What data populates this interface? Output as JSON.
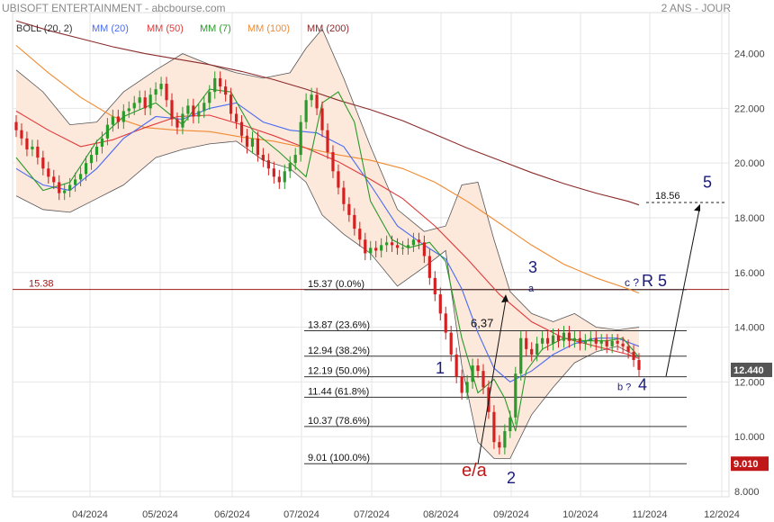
{
  "header": {
    "left": "UBISOFT ENTERTAINMENT - abcbourse.com",
    "right": "2 ANS - JOUR"
  },
  "legend": [
    {
      "label": "BOLL (20, 2)",
      "color": "#333333"
    },
    {
      "label": "MM (20)",
      "color": "#4a6cf0"
    },
    {
      "label": "MM (50)",
      "color": "#e03a3a"
    },
    {
      "label": "MM (7)",
      "color": "#2a9a2a"
    },
    {
      "label": "MM (100)",
      "color": "#f08a30"
    },
    {
      "label": "MM (200)",
      "color": "#8b2a2a"
    }
  ],
  "colors": {
    "up": "#2a9a2a",
    "down": "#d42020",
    "band_fill": "#fde8dc",
    "band_line": "#555555",
    "fib_line": "#333333",
    "hline": "#a01818",
    "wave_blue": "#1a1a7a",
    "wave_red": "#c01818",
    "grid": "#e6e6e6"
  },
  "chart_data": {
    "type": "candlestick",
    "title": "UBISOFT ENTERTAINMENT",
    "x_ticks": [
      "04/2024",
      "05/2024",
      "06/2024",
      "07/2024",
      "07/2024",
      "08/2024",
      "09/2024",
      "10/2024",
      "11/2024",
      "12/2024"
    ],
    "y_ticks": [
      "24.000",
      "22.000",
      "20.000",
      "18.000",
      "16.000",
      "14.000",
      "12.000",
      "10.000",
      "8.000"
    ],
    "ylim": [
      7.8,
      25.5
    ],
    "last_price": "12.440",
    "low_marker": "9.010",
    "horizontal_line": {
      "label": "15.38",
      "value": 15.38
    },
    "fibonacci": [
      {
        "label": "15.37  (0.0%)",
        "value": 15.37
      },
      {
        "label": "13.87  (23.6%)",
        "value": 13.87
      },
      {
        "label": "12.94  (38.2%)",
        "value": 12.94
      },
      {
        "label": "12.19  (50.0%)",
        "value": 12.19
      },
      {
        "label": "11.44  (61.8%)",
        "value": 11.44
      },
      {
        "label": "10.37  (78.6%)",
        "value": 10.37
      },
      {
        "label": "9.01  (100.0%)",
        "value": 9.01
      }
    ],
    "target": {
      "label": "18.56",
      "value": 18.56
    },
    "annotations": [
      {
        "text": "5",
        "kind": "wave_blue_big"
      },
      {
        "text": "c ?",
        "kind": "small_blue"
      },
      {
        "text": "R 5",
        "kind": "wave_blue_big"
      },
      {
        "text": "3",
        "kind": "wave_blue_big"
      },
      {
        "text": "a",
        "kind": "small_blue"
      },
      {
        "text": "6,37",
        "kind": "plain"
      },
      {
        "text": "1",
        "kind": "wave_blue_big"
      },
      {
        "text": "b ?",
        "kind": "small_blue"
      },
      {
        "text": "4",
        "kind": "wave_blue_big"
      },
      {
        "text": "e/a",
        "kind": "wave_red"
      },
      {
        "text": "2",
        "kind": "wave_blue_big"
      }
    ],
    "series": [
      {
        "name": "MM (200)",
        "points": [
          [
            0,
            25.2
          ],
          [
            12,
            24.85
          ],
          [
            24,
            24.55
          ],
          [
            36,
            24.25
          ],
          [
            48,
            24.0
          ],
          [
            60,
            23.8
          ],
          [
            72,
            23.6
          ],
          [
            84,
            23.35
          ],
          [
            96,
            23.05
          ],
          [
            108,
            22.7
          ],
          [
            120,
            22.3
          ],
          [
            132,
            21.95
          ],
          [
            144,
            21.55
          ],
          [
            156,
            21.05
          ],
          [
            168,
            20.55
          ],
          [
            180,
            20.1
          ],
          [
            192,
            19.65
          ],
          [
            204,
            19.25
          ],
          [
            216,
            18.9
          ],
          [
            228,
            18.6
          ],
          [
            232,
            18.47
          ]
        ]
      },
      {
        "name": "MM (100)",
        "points": [
          [
            0,
            24.3
          ],
          [
            12,
            23.3
          ],
          [
            24,
            22.4
          ],
          [
            36,
            21.7
          ],
          [
            48,
            21.3
          ],
          [
            60,
            21.2
          ],
          [
            72,
            21.15
          ],
          [
            84,
            20.95
          ],
          [
            96,
            20.8
          ],
          [
            108,
            20.55
          ],
          [
            120,
            20.3
          ],
          [
            132,
            20.1
          ],
          [
            144,
            19.8
          ],
          [
            156,
            19.3
          ],
          [
            168,
            18.6
          ],
          [
            180,
            17.8
          ],
          [
            192,
            17.0
          ],
          [
            204,
            16.3
          ],
          [
            216,
            15.8
          ],
          [
            228,
            15.4
          ],
          [
            232,
            15.25
          ]
        ]
      },
      {
        "name": "MM (50)",
        "points": [
          [
            0,
            21.9
          ],
          [
            12,
            21.2
          ],
          [
            24,
            20.6
          ],
          [
            36,
            20.85
          ],
          [
            48,
            21.3
          ],
          [
            60,
            21.7
          ],
          [
            72,
            21.75
          ],
          [
            84,
            21.4
          ],
          [
            96,
            21.0
          ],
          [
            108,
            20.55
          ],
          [
            120,
            20.05
          ],
          [
            132,
            19.4
          ],
          [
            144,
            18.7
          ],
          [
            156,
            17.7
          ],
          [
            168,
            16.5
          ],
          [
            180,
            15.2
          ],
          [
            192,
            14.2
          ],
          [
            204,
            13.6
          ],
          [
            216,
            13.3
          ],
          [
            228,
            13.0
          ],
          [
            232,
            12.85
          ]
        ]
      },
      {
        "name": "MM (20)",
        "points": [
          [
            0,
            19.8
          ],
          [
            10,
            19.2
          ],
          [
            20,
            19.0
          ],
          [
            30,
            19.8
          ],
          [
            40,
            20.9
          ],
          [
            52,
            21.7
          ],
          [
            62,
            21.6
          ],
          [
            72,
            22.0
          ],
          [
            82,
            22.2
          ],
          [
            92,
            21.5
          ],
          [
            102,
            21.2
          ],
          [
            112,
            21.1
          ],
          [
            122,
            20.6
          ],
          [
            132,
            19.2
          ],
          [
            142,
            17.7
          ],
          [
            152,
            17.0
          ],
          [
            160,
            16.5
          ],
          [
            166,
            15.4
          ],
          [
            172,
            13.8
          ],
          [
            178,
            12.5
          ],
          [
            184,
            12.0
          ],
          [
            192,
            12.4
          ],
          [
            200,
            13.0
          ],
          [
            208,
            13.4
          ],
          [
            216,
            13.6
          ],
          [
            224,
            13.6
          ],
          [
            232,
            13.3
          ]
        ]
      },
      {
        "name": "MM (7)",
        "points": [
          [
            0,
            20.2
          ],
          [
            10,
            19.0
          ],
          [
            20,
            19.3
          ],
          [
            30,
            20.8
          ],
          [
            40,
            21.7
          ],
          [
            52,
            22.2
          ],
          [
            62,
            21.4
          ],
          [
            72,
            22.7
          ],
          [
            80,
            22.6
          ],
          [
            88,
            21.2
          ],
          [
            98,
            20.4
          ],
          [
            108,
            19.5
          ],
          [
            114,
            22.2
          ],
          [
            120,
            22.6
          ],
          [
            126,
            21.5
          ],
          [
            132,
            18.6
          ],
          [
            140,
            17.2
          ],
          [
            146,
            16.9
          ],
          [
            154,
            17.1
          ],
          [
            160,
            16.4
          ],
          [
            166,
            13.6
          ],
          [
            172,
            11.6
          ],
          [
            178,
            12.1
          ],
          [
            182,
            11.4
          ],
          [
            186,
            10.2
          ],
          [
            190,
            12.4
          ],
          [
            196,
            13.2
          ],
          [
            204,
            13.6
          ],
          [
            212,
            13.5
          ],
          [
            220,
            13.5
          ],
          [
            226,
            13.6
          ],
          [
            232,
            12.9
          ]
        ]
      },
      {
        "name": "BOLL upper",
        "points": [
          [
            0,
            23.4
          ],
          [
            10,
            22.6
          ],
          [
            20,
            21.4
          ],
          [
            30,
            21.5
          ],
          [
            40,
            22.6
          ],
          [
            52,
            23.4
          ],
          [
            62,
            24.0
          ],
          [
            72,
            23.6
          ],
          [
            82,
            23.3
          ],
          [
            92,
            23.1
          ],
          [
            102,
            23.3
          ],
          [
            108,
            24.2
          ],
          [
            114,
            24.9
          ],
          [
            122,
            23.1
          ],
          [
            132,
            20.6
          ],
          [
            142,
            18.3
          ],
          [
            152,
            17.5
          ],
          [
            160,
            17.7
          ],
          [
            166,
            19.2
          ],
          [
            172,
            19.3
          ],
          [
            178,
            17.2
          ],
          [
            184,
            15.3
          ],
          [
            192,
            14.5
          ],
          [
            200,
            14.2
          ],
          [
            208,
            14.5
          ],
          [
            216,
            14.0
          ],
          [
            224,
            13.9
          ],
          [
            232,
            14.0
          ]
        ]
      },
      {
        "name": "BOLL lower",
        "points": [
          [
            0,
            18.8
          ],
          [
            10,
            18.3
          ],
          [
            20,
            18.2
          ],
          [
            30,
            18.7
          ],
          [
            40,
            19.2
          ],
          [
            52,
            20.2
          ],
          [
            62,
            20.5
          ],
          [
            72,
            20.7
          ],
          [
            82,
            20.8
          ],
          [
            92,
            20.1
          ],
          [
            102,
            19.8
          ],
          [
            108,
            19.3
          ],
          [
            114,
            18.1
          ],
          [
            122,
            17.4
          ],
          [
            132,
            16.7
          ],
          [
            142,
            15.5
          ],
          [
            152,
            16.2
          ],
          [
            160,
            16.8
          ],
          [
            166,
            12.6
          ],
          [
            172,
            9.8
          ],
          [
            178,
            9.2
          ],
          [
            184,
            9.2
          ],
          [
            192,
            10.8
          ],
          [
            200,
            11.8
          ],
          [
            208,
            12.7
          ],
          [
            216,
            13.1
          ],
          [
            224,
            13.3
          ],
          [
            232,
            12.9
          ]
        ]
      }
    ],
    "close": [
      [
        0,
        21.2
      ],
      [
        2,
        20.9
      ],
      [
        4,
        20.5
      ],
      [
        6,
        20.6
      ],
      [
        8,
        20.2
      ],
      [
        10,
        19.8
      ],
      [
        12,
        19.5
      ],
      [
        14,
        19.3
      ],
      [
        16,
        18.9
      ],
      [
        18,
        19.0
      ],
      [
        20,
        19.2
      ],
      [
        22,
        19.4
      ],
      [
        24,
        19.6
      ],
      [
        26,
        20.0
      ],
      [
        28,
        20.3
      ],
      [
        30,
        20.6
      ],
      [
        32,
        20.9
      ],
      [
        34,
        21.4
      ],
      [
        36,
        21.7
      ],
      [
        38,
        21.5
      ],
      [
        40,
        21.9
      ],
      [
        42,
        22.0
      ],
      [
        44,
        22.2
      ],
      [
        46,
        22.4
      ],
      [
        48,
        22.0
      ],
      [
        50,
        22.5
      ],
      [
        52,
        22.7
      ],
      [
        54,
        22.9
      ],
      [
        56,
        22.3
      ],
      [
        58,
        21.6
      ],
      [
        60,
        21.3
      ],
      [
        62,
        21.8
      ],
      [
        64,
        22.1
      ],
      [
        66,
        21.7
      ],
      [
        68,
        21.9
      ],
      [
        70,
        22.2
      ],
      [
        72,
        22.6
      ],
      [
        74,
        23.1
      ],
      [
        76,
        22.8
      ],
      [
        78,
        22.5
      ],
      [
        80,
        21.8
      ],
      [
        82,
        21.5
      ],
      [
        84,
        21.0
      ],
      [
        86,
        20.6
      ],
      [
        88,
        20.9
      ],
      [
        90,
        20.3
      ],
      [
        92,
        20.1
      ],
      [
        94,
        19.8
      ],
      [
        96,
        19.5
      ],
      [
        98,
        19.3
      ],
      [
        100,
        19.7
      ],
      [
        102,
        20.0
      ],
      [
        104,
        20.3
      ],
      [
        106,
        21.5
      ],
      [
        108,
        22.3
      ],
      [
        110,
        22.5
      ],
      [
        112,
        22.0
      ],
      [
        114,
        21.2
      ],
      [
        116,
        20.4
      ],
      [
        118,
        19.7
      ],
      [
        120,
        19.1
      ],
      [
        122,
        18.5
      ],
      [
        124,
        18.1
      ],
      [
        126,
        17.6
      ],
      [
        128,
        17.2
      ],
      [
        130,
        16.7
      ],
      [
        132,
        16.9
      ],
      [
        134,
        16.8
      ],
      [
        136,
        17.0
      ],
      [
        138,
        17.1
      ],
      [
        140,
        17.0
      ],
      [
        142,
        16.9
      ],
      [
        144,
        16.9
      ],
      [
        146,
        17.0
      ],
      [
        148,
        17.2
      ],
      [
        150,
        17.1
      ],
      [
        152,
        16.6
      ],
      [
        154,
        15.8
      ],
      [
        156,
        15.2
      ],
      [
        158,
        14.5
      ],
      [
        160,
        13.8
      ],
      [
        162,
        13.0
      ],
      [
        164,
        12.2
      ],
      [
        166,
        11.6
      ],
      [
        168,
        12.0
      ],
      [
        170,
        12.6
      ],
      [
        172,
        12.4
      ],
      [
        174,
        11.8
      ],
      [
        176,
        10.9
      ],
      [
        178,
        9.8
      ],
      [
        180,
        9.6
      ],
      [
        182,
        10.2
      ],
      [
        184,
        10.7
      ],
      [
        186,
        12.3
      ],
      [
        188,
        13.6
      ],
      [
        190,
        13.2
      ],
      [
        192,
        13.0
      ],
      [
        194,
        13.4
      ],
      [
        196,
        13.6
      ],
      [
        198,
        13.4
      ],
      [
        200,
        13.7
      ],
      [
        202,
        13.5
      ],
      [
        204,
        13.8
      ],
      [
        206,
        13.5
      ],
      [
        208,
        13.6
      ],
      [
        210,
        13.4
      ],
      [
        212,
        13.5
      ],
      [
        214,
        13.6
      ],
      [
        216,
        13.4
      ],
      [
        218,
        13.5
      ],
      [
        220,
        13.3
      ],
      [
        222,
        13.5
      ],
      [
        224,
        13.4
      ],
      [
        226,
        13.3
      ],
      [
        228,
        13.1
      ],
      [
        230,
        12.8
      ],
      [
        232,
        12.44
      ]
    ]
  }
}
